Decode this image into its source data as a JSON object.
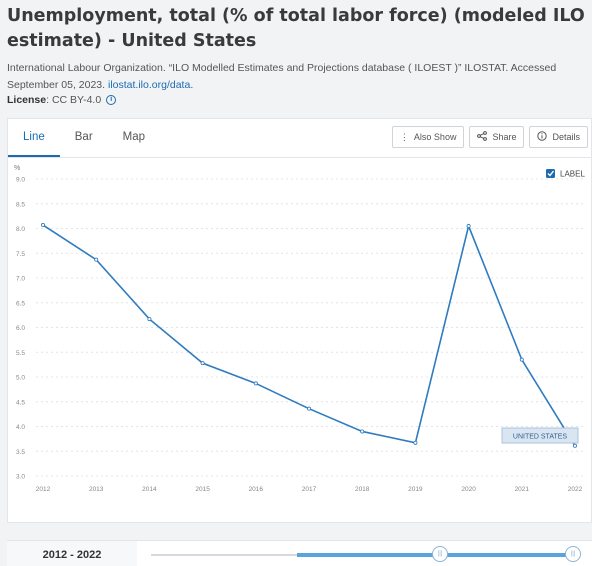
{
  "header": {
    "title": "Unemployment, total (% of total labor force) (modeled ILO estimate) - United States",
    "source_text": "International Labour Organization. “ILO Modelled Estimates and Projections database ( ILOEST )” ILOSTAT. Accessed September 05, 2023. ",
    "source_link": "ilostat.ilo.org/data",
    "source_end": ".",
    "license_label": "License",
    "license_value": ": CC BY-4.0"
  },
  "tabs": [
    {
      "label": "Line",
      "active": true
    },
    {
      "label": "Bar",
      "active": false
    },
    {
      "label": "Map",
      "active": false
    }
  ],
  "actions": {
    "also_show": "Also Show",
    "share": "Share",
    "details": "Details"
  },
  "legend": {
    "label": "LABEL",
    "checked": true
  },
  "series_label": "UNITED STATES",
  "chart_data": {
    "type": "line",
    "ylabel": "%",
    "ylim": [
      3.0,
      9.0
    ],
    "yticks": [
      "3.0",
      "3.5",
      "4.0",
      "4.5",
      "5.0",
      "5.5",
      "6.0",
      "6.5",
      "7.0",
      "7.5",
      "8.0",
      "8.5",
      "9.0"
    ],
    "x": [
      "2012",
      "2013",
      "2014",
      "2015",
      "2016",
      "2017",
      "2018",
      "2019",
      "2020",
      "2021",
      "2022"
    ],
    "series": [
      {
        "name": "UNITED STATES",
        "color": "#2e7bbf",
        "values": [
          8.07,
          7.37,
          6.17,
          5.28,
          4.87,
          4.36,
          3.9,
          3.67,
          8.05,
          5.35,
          3.61
        ]
      }
    ],
    "grid": true
  },
  "range": {
    "label": "2012 - 2022",
    "start": "2012",
    "end": "2022",
    "selected_start": "2020",
    "selected_end": "2022"
  },
  "colors": {
    "accent": "#1c6bb0",
    "line": "#2e7bbf"
  }
}
